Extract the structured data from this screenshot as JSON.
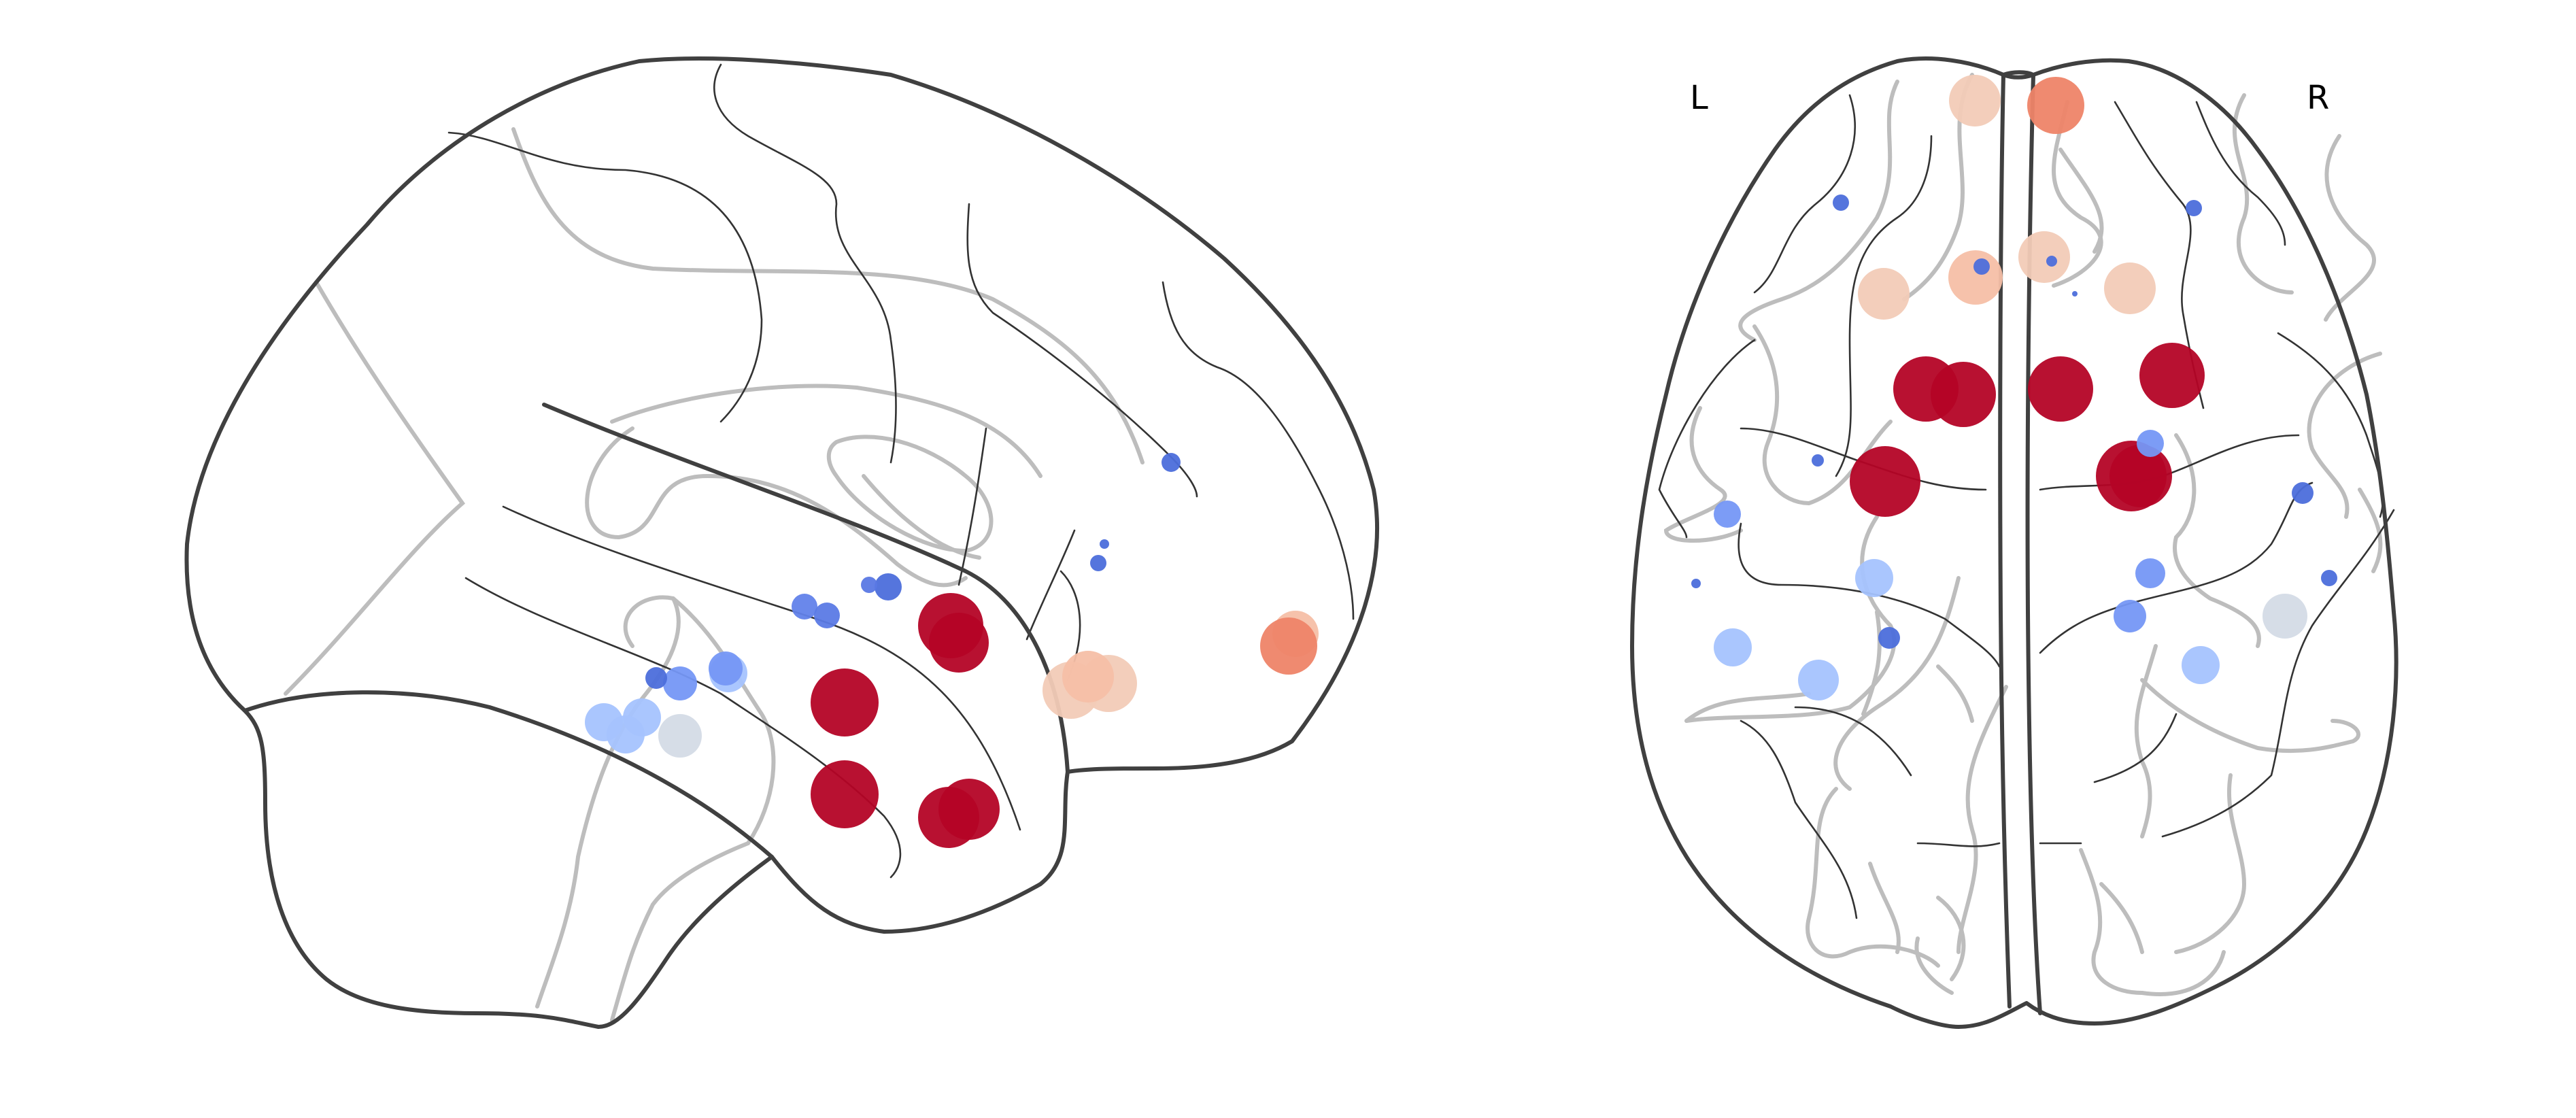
{
  "view_labels": {
    "left": "L",
    "right": "R"
  },
  "colors": {
    "outline": "#404040",
    "sulcus_dark": "#333333",
    "sulcus_light": "#bdbdbd",
    "node_palette": [
      "#b40426",
      "#ee8468",
      "#f6bfa6",
      "#f2cbb7",
      "#d4dbe6",
      "#a5c3fe",
      "#7597f6",
      "#4c6edb"
    ]
  },
  "nodes": {
    "sagittal": [
      {
        "color": "#b40426"
      },
      {
        "color": "#b40426"
      },
      {
        "color": "#b40426"
      },
      {
        "color": "#b40426"
      },
      {
        "color": "#b40426"
      },
      {
        "color": "#b40426"
      },
      {
        "color": "#f6bfa6"
      },
      {
        "color": "#ee8468"
      },
      {
        "color": "#f2cbb7"
      },
      {
        "color": "#f2cbb7"
      },
      {
        "color": "#f6bfa6"
      },
      {
        "color": "#a5c3fe"
      },
      {
        "color": "#a5c3fe"
      },
      {
        "color": "#a5c3fe"
      },
      {
        "color": "#a5c3fe"
      },
      {
        "color": "#d4dbe6"
      },
      {
        "color": "#7597f6"
      },
      {
        "color": "#7597f6"
      },
      {
        "color": "#6282ea"
      },
      {
        "color": "#5b7ae5"
      },
      {
        "color": "#4c6edb"
      },
      {
        "color": "#5a78e4"
      },
      {
        "color": "#4c6edb"
      },
      {
        "color": "#4c6edb"
      },
      {
        "color": "#4c6edb"
      },
      {
        "color": "#4c6edb"
      }
    ],
    "axial": [
      {
        "color": "#b40426"
      },
      {
        "color": "#b40426"
      },
      {
        "color": "#b40426"
      },
      {
        "color": "#b40426"
      },
      {
        "color": "#b40426"
      },
      {
        "color": "#b40426"
      },
      {
        "color": "#b40426"
      },
      {
        "color": "#f2cbb7"
      },
      {
        "color": "#ee8468"
      },
      {
        "color": "#f6bfa6"
      },
      {
        "color": "#f2cbb7"
      },
      {
        "color": "#f2cbb7"
      },
      {
        "color": "#f2cbb7"
      },
      {
        "color": "#a5c3fe"
      },
      {
        "color": "#a5c3fe"
      },
      {
        "color": "#a5c3fe"
      },
      {
        "color": "#a5c3fe"
      },
      {
        "color": "#d4dbe6"
      },
      {
        "color": "#7597f6"
      },
      {
        "color": "#7597f6"
      },
      {
        "color": "#7597f6"
      },
      {
        "color": "#7597f6"
      },
      {
        "color": "#4c6edb"
      },
      {
        "color": "#4c6edb"
      },
      {
        "color": "#4c6edb"
      },
      {
        "color": "#4c6edb"
      },
      {
        "color": "#4c6edb"
      },
      {
        "color": "#4c6edb"
      },
      {
        "color": "#4c6edb"
      },
      {
        "color": "#4c6edb"
      },
      {
        "color": "#4c6edb"
      },
      {
        "color": "#4c6edb"
      }
    ]
  }
}
